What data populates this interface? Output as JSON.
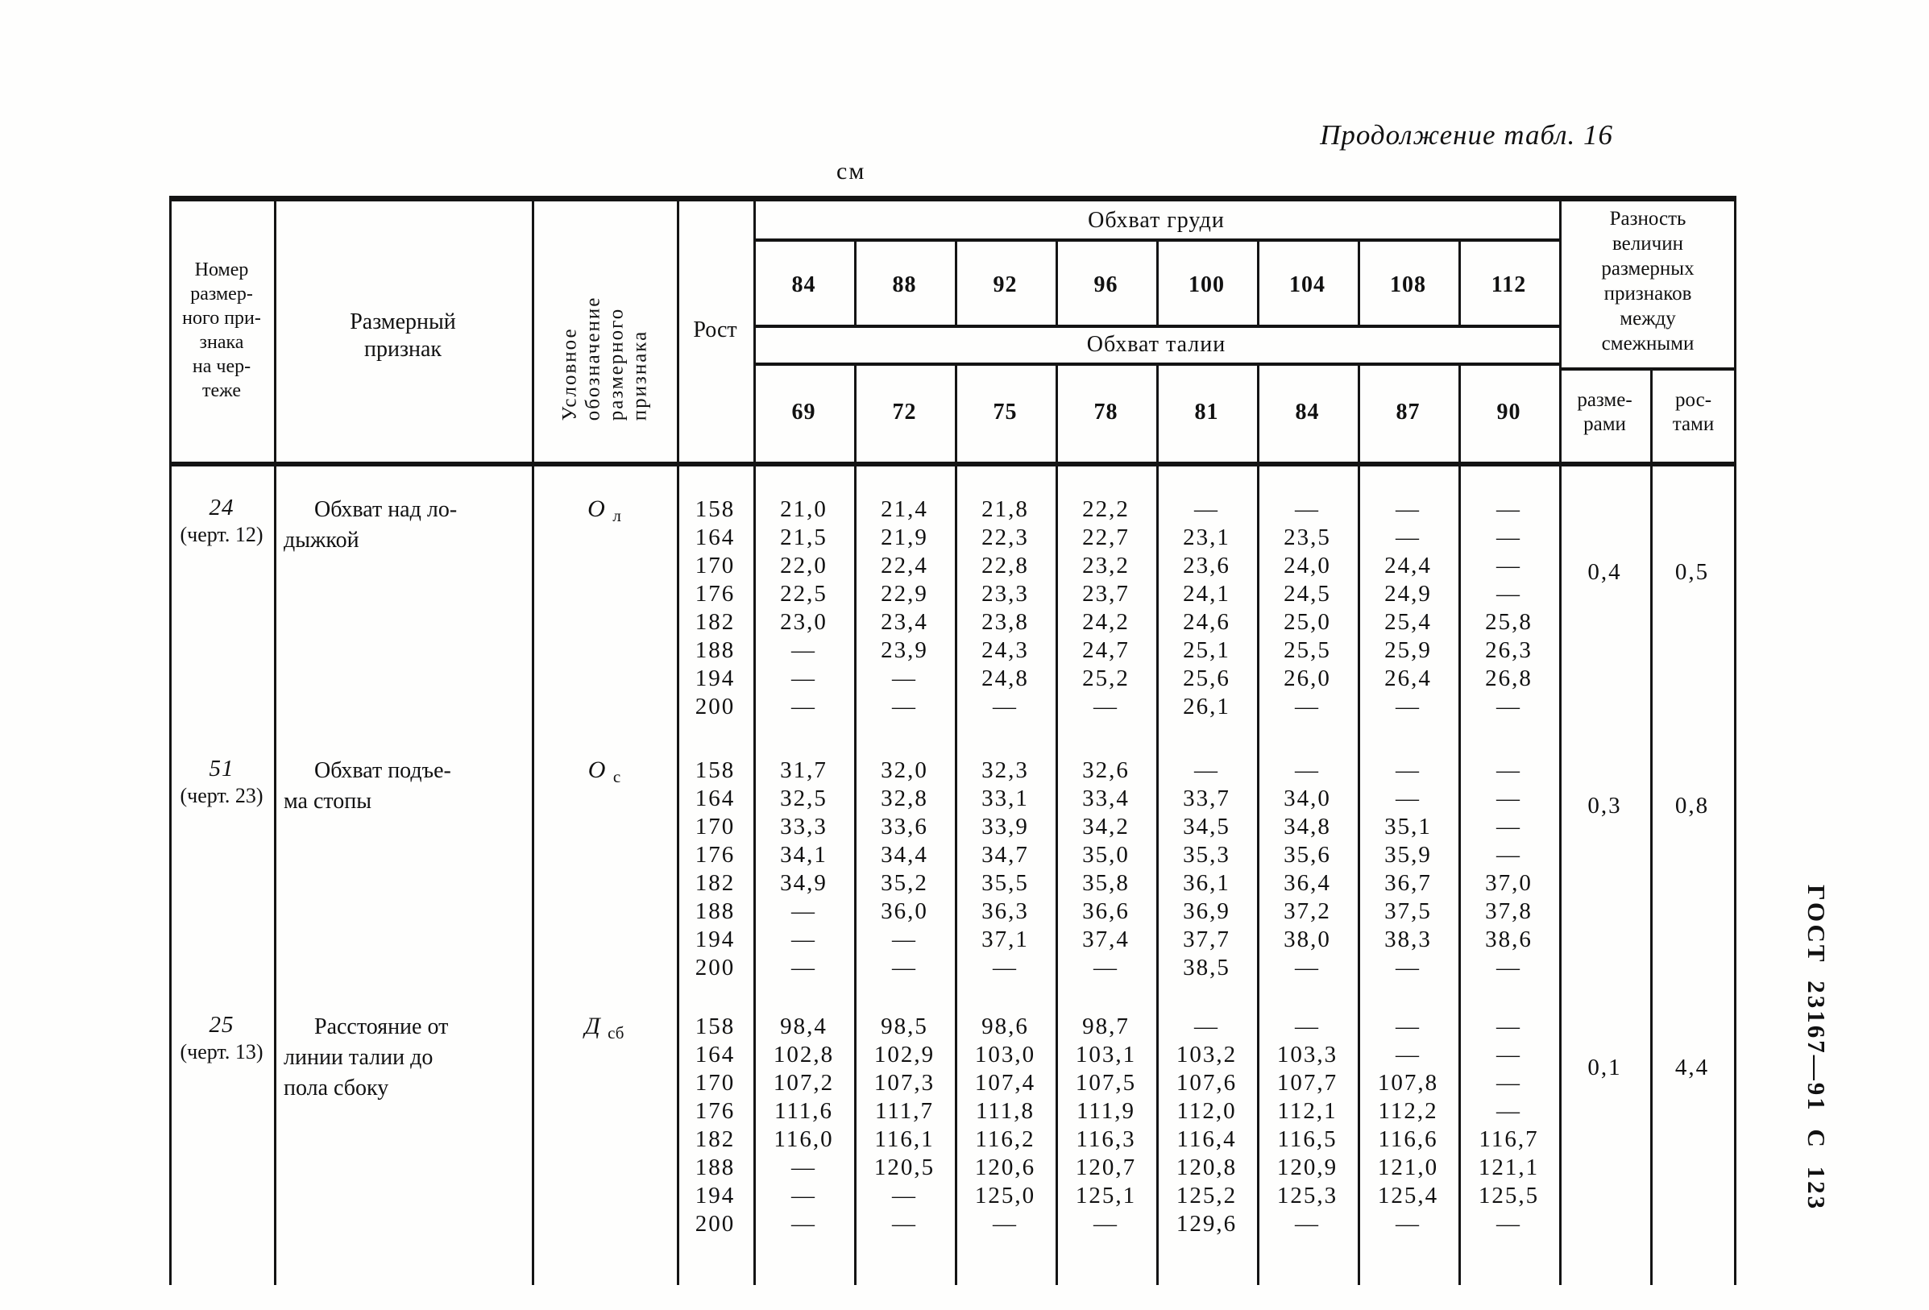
{
  "page": {
    "title": "Продолжение табл. 16",
    "unit": "см",
    "margin_note": "ГОСТ 23167—91 С 123"
  },
  "header": {
    "number_lines": [
      "Номер",
      "размер-",
      "ного при-",
      "знака",
      "на чер-",
      "теже"
    ],
    "feature_lines": [
      "Размерный",
      "признак"
    ],
    "designation_lines": [
      "Условное",
      "обозначение",
      "размерного",
      "признака"
    ],
    "height_label": "Рост",
    "chest_label": "Обхват груди",
    "chest_sizes": [
      "84",
      "88",
      "92",
      "96",
      "100",
      "104",
      "108",
      "112"
    ],
    "waist_label": "Обхват талии",
    "waist_sizes": [
      "69",
      "72",
      "75",
      "78",
      "81",
      "84",
      "87",
      "90"
    ],
    "difference_lines": [
      "Разность",
      "величин",
      "размерных",
      "признаков",
      "между",
      "смежными"
    ],
    "diff_by_sizes_lines": [
      "разме-",
      "рами"
    ],
    "diff_by_heights_lines": [
      "рос-",
      "тами"
    ]
  },
  "blocks": [
    {
      "number": "24",
      "sheet_ref": "(черт. 12)",
      "feature_lines": [
        "Обхват над ло-",
        "дыжкой"
      ],
      "designation_main": "О",
      "designation_sub": "л",
      "heights": [
        "158",
        "164",
        "170",
        "176",
        "182",
        "188",
        "194",
        "200"
      ],
      "columns": [
        [
          "21,0",
          "21,5",
          "22,0",
          "22,5",
          "23,0",
          "—",
          "—",
          "—"
        ],
        [
          "21,4",
          "21,9",
          "22,4",
          "22,9",
          "23,4",
          "23,9",
          "—",
          "—"
        ],
        [
          "21,8",
          "22,3",
          "22,8",
          "23,3",
          "23,8",
          "24,3",
          "24,8",
          "—"
        ],
        [
          "22,2",
          "22,7",
          "23,2",
          "23,7",
          "24,2",
          "24,7",
          "25,2",
          "—"
        ],
        [
          "—",
          "23,1",
          "23,6",
          "24,1",
          "24,6",
          "25,1",
          "25,6",
          "26,1"
        ],
        [
          "—",
          "23,5",
          "24,0",
          "24,5",
          "25,0",
          "25,5",
          "26,0",
          "—"
        ],
        [
          "—",
          "—",
          "24,4",
          "24,9",
          "25,4",
          "25,9",
          "26,4",
          "—"
        ],
        [
          "—",
          "—",
          "—",
          "—",
          "25,8",
          "26,3",
          "26,8",
          "—"
        ]
      ],
      "diff_by_sizes": "0,4",
      "diff_by_heights": "0,5"
    },
    {
      "number": "51",
      "sheet_ref": "(черт. 23)",
      "feature_lines": [
        "Обхват подъе-",
        "ма стопы"
      ],
      "designation_main": "О",
      "designation_sub": "с",
      "heights": [
        "158",
        "164",
        "170",
        "176",
        "182",
        "188",
        "194",
        "200"
      ],
      "columns": [
        [
          "31,7",
          "32,5",
          "33,3",
          "34,1",
          "34,9",
          "—",
          "—",
          "—"
        ],
        [
          "32,0",
          "32,8",
          "33,6",
          "34,4",
          "35,2",
          "36,0",
          "—",
          "—"
        ],
        [
          "32,3",
          "33,1",
          "33,9",
          "34,7",
          "35,5",
          "36,3",
          "37,1",
          "—"
        ],
        [
          "32,6",
          "33,4",
          "34,2",
          "35,0",
          "35,8",
          "36,6",
          "37,4",
          "—"
        ],
        [
          "—",
          "33,7",
          "34,5",
          "35,3",
          "36,1",
          "36,9",
          "37,7",
          "38,5"
        ],
        [
          "—",
          "34,0",
          "34,8",
          "35,6",
          "36,4",
          "37,2",
          "38,0",
          "—"
        ],
        [
          "—",
          "—",
          "35,1",
          "35,9",
          "36,7",
          "37,5",
          "38,3",
          "—"
        ],
        [
          "—",
          "—",
          "—",
          "—",
          "37,0",
          "37,8",
          "38,6",
          "—"
        ]
      ],
      "diff_by_sizes": "0,3",
      "diff_by_heights": "0,8"
    },
    {
      "number": "25",
      "sheet_ref": "(черт. 13)",
      "feature_lines": [
        "Расстояние от",
        "линии талии до",
        "пола сбоку"
      ],
      "designation_main": "Д",
      "designation_sub": "сб",
      "heights": [
        "158",
        "164",
        "170",
        "176",
        "182",
        "188",
        "194",
        "200"
      ],
      "columns": [
        [
          "98,4",
          "102,8",
          "107,2",
          "111,6",
          "116,0",
          "—",
          "—",
          "—"
        ],
        [
          "98,5",
          "102,9",
          "107,3",
          "111,7",
          "116,1",
          "120,5",
          "—",
          "—"
        ],
        [
          "98,6",
          "103,0",
          "107,4",
          "111,8",
          "116,2",
          "120,6",
          "125,0",
          "—"
        ],
        [
          "98,7",
          "103,1",
          "107,5",
          "111,9",
          "116,3",
          "120,7",
          "125,1",
          "—"
        ],
        [
          "—",
          "103,2",
          "107,6",
          "112,0",
          "116,4",
          "120,8",
          "125,2",
          "129,6"
        ],
        [
          "—",
          "103,3",
          "107,7",
          "112,1",
          "116,5",
          "120,9",
          "125,3",
          "—"
        ],
        [
          "—",
          "—",
          "107,8",
          "112,2",
          "116,6",
          "121,0",
          "125,4",
          "—"
        ],
        [
          "—",
          "—",
          "—",
          "—",
          "116,7",
          "121,1",
          "125,5",
          "—"
        ]
      ],
      "diff_by_sizes": "0,1",
      "diff_by_heights": "4,4"
    }
  ]
}
